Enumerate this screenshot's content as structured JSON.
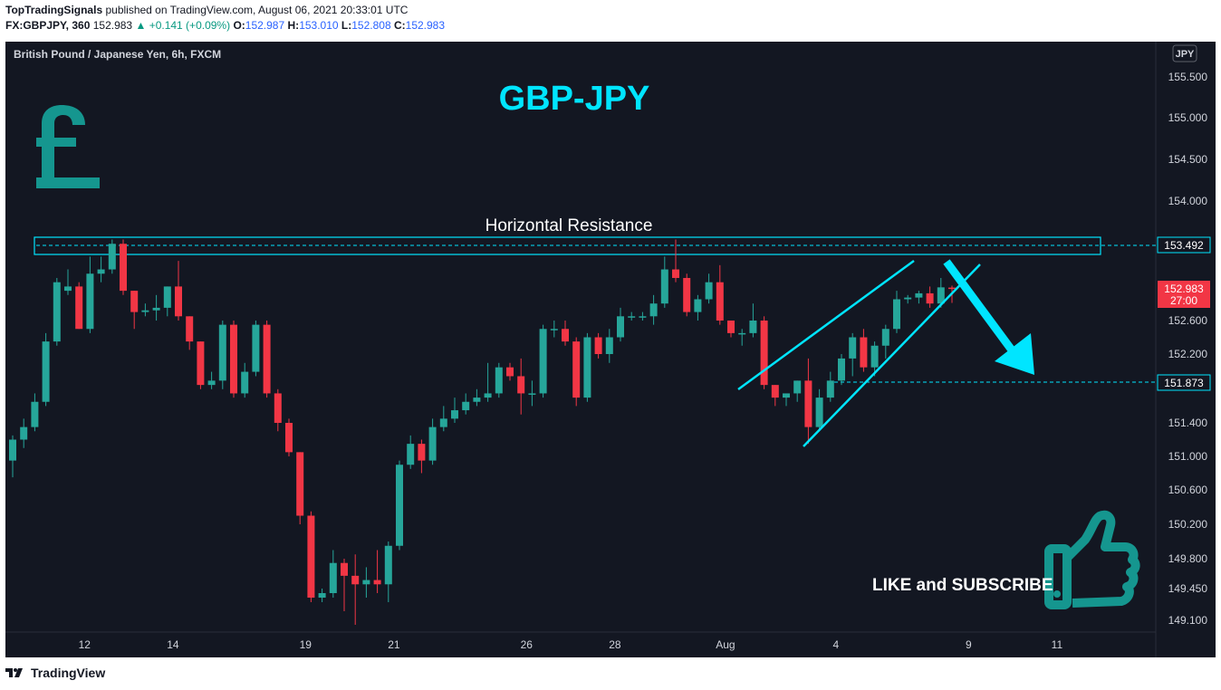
{
  "header": {
    "publisher": "TopTradingSignals",
    "published_text": "published on TradingView.com, August 06, 2021 20:33:01 UTC",
    "symbol": "FX:GBPJPY, 360",
    "last": "152.983",
    "change": "+0.141 (+0.09%)",
    "o_label": "O:",
    "o": "152.987",
    "h_label": "H:",
    "h": "153.010",
    "l_label": "L:",
    "l": "152.808",
    "c_label": "C:",
    "c": "152.983"
  },
  "footer": {
    "logo_text": "TradingView"
  },
  "chart_data": {
    "type": "candlestick",
    "instrument": "British Pound / Japanese Yen, 6h, FXCM",
    "currency_badge": "JPY",
    "title": "GBP-JPY",
    "y_ticks": [
      155.5,
      155.0,
      154.5,
      154.0,
      152.6,
      152.2,
      151.4,
      151.0,
      150.6,
      150.2,
      149.8,
      149.45,
      149.1
    ],
    "y_tick_labels": [
      "155.500",
      "155.000",
      "154.500",
      "154.000",
      "152.600",
      "152.200",
      "151.400",
      "151.000",
      "150.600",
      "150.200",
      "149.800",
      "149.450",
      "149.100"
    ],
    "x_tick_labels": [
      "12",
      "14",
      "19",
      "21",
      "26",
      "28",
      "Aug",
      "4",
      "9",
      "11"
    ],
    "price_labels": {
      "resistance": "153.492",
      "last_price": "152.983",
      "countdown": "27:00",
      "target": "151.873"
    },
    "annotations": {
      "resistance_label": "Horizontal Resistance",
      "cta": "LIKE and SUBSCRIBE"
    },
    "colors": {
      "background": "#131722",
      "up": "#26a69a",
      "down": "#f23645",
      "annotation": "#00e5ff",
      "icon": "#15968f",
      "title": "#00e5ff"
    },
    "candles": [
      {
        "o": 150.95,
        "h": 151.25,
        "l": 150.75,
        "c": 151.2
      },
      {
        "o": 151.2,
        "h": 151.45,
        "l": 151.1,
        "c": 151.35
      },
      {
        "o": 151.35,
        "h": 151.75,
        "l": 151.3,
        "c": 151.65
      },
      {
        "o": 151.65,
        "h": 152.45,
        "l": 151.6,
        "c": 152.35
      },
      {
        "o": 152.35,
        "h": 153.1,
        "l": 152.3,
        "c": 153.05
      },
      {
        "o": 152.95,
        "h": 153.2,
        "l": 152.9,
        "c": 153.0
      },
      {
        "o": 153.0,
        "h": 153.05,
        "l": 152.5,
        "c": 152.5
      },
      {
        "o": 152.5,
        "h": 153.35,
        "l": 152.45,
        "c": 153.15
      },
      {
        "o": 153.15,
        "h": 153.35,
        "l": 153.05,
        "c": 153.2
      },
      {
        "o": 153.2,
        "h": 153.55,
        "l": 153.15,
        "c": 153.5
      },
      {
        "o": 153.5,
        "h": 153.55,
        "l": 152.9,
        "c": 152.95
      },
      {
        "o": 152.95,
        "h": 152.95,
        "l": 152.5,
        "c": 152.7
      },
      {
        "o": 152.7,
        "h": 152.8,
        "l": 152.65,
        "c": 152.72
      },
      {
        "o": 152.72,
        "h": 152.9,
        "l": 152.6,
        "c": 152.75
      },
      {
        "o": 152.75,
        "h": 153.0,
        "l": 152.65,
        "c": 153.0
      },
      {
        "o": 153.0,
        "h": 153.3,
        "l": 152.6,
        "c": 152.65
      },
      {
        "o": 152.65,
        "h": 152.65,
        "l": 152.25,
        "c": 152.35
      },
      {
        "o": 152.35,
        "h": 152.35,
        "l": 151.8,
        "c": 151.85
      },
      {
        "o": 151.85,
        "h": 152.0,
        "l": 151.8,
        "c": 151.9
      },
      {
        "o": 151.9,
        "h": 152.6,
        "l": 151.8,
        "c": 152.55
      },
      {
        "o": 152.55,
        "h": 152.6,
        "l": 151.7,
        "c": 151.75
      },
      {
        "o": 151.75,
        "h": 152.1,
        "l": 151.7,
        "c": 152.0
      },
      {
        "o": 152.0,
        "h": 152.6,
        "l": 151.95,
        "c": 152.55
      },
      {
        "o": 152.55,
        "h": 152.6,
        "l": 151.7,
        "c": 151.75
      },
      {
        "o": 151.75,
        "h": 151.8,
        "l": 151.3,
        "c": 151.4
      },
      {
        "o": 151.4,
        "h": 151.45,
        "l": 151.0,
        "c": 151.05
      },
      {
        "o": 151.05,
        "h": 151.05,
        "l": 150.2,
        "c": 150.3
      },
      {
        "o": 150.3,
        "h": 150.35,
        "l": 149.3,
        "c": 149.35
      },
      {
        "o": 149.35,
        "h": 149.45,
        "l": 149.3,
        "c": 149.4
      },
      {
        "o": 149.4,
        "h": 149.9,
        "l": 149.35,
        "c": 149.75
      },
      {
        "o": 149.75,
        "h": 149.8,
        "l": 149.2,
        "c": 149.6
      },
      {
        "o": 149.6,
        "h": 149.85,
        "l": 149.05,
        "c": 149.5
      },
      {
        "o": 149.5,
        "h": 149.7,
        "l": 149.35,
        "c": 149.55
      },
      {
        "o": 149.55,
        "h": 149.9,
        "l": 149.4,
        "c": 149.5
      },
      {
        "o": 149.5,
        "h": 150.0,
        "l": 149.3,
        "c": 149.95
      },
      {
        "o": 149.95,
        "h": 150.95,
        "l": 149.9,
        "c": 150.9
      },
      {
        "o": 150.9,
        "h": 151.25,
        "l": 150.85,
        "c": 151.15
      },
      {
        "o": 151.15,
        "h": 151.2,
        "l": 150.8,
        "c": 150.95
      },
      {
        "o": 150.95,
        "h": 151.45,
        "l": 150.9,
        "c": 151.35
      },
      {
        "o": 151.35,
        "h": 151.6,
        "l": 151.3,
        "c": 151.45
      },
      {
        "o": 151.45,
        "h": 151.7,
        "l": 151.4,
        "c": 151.55
      },
      {
        "o": 151.55,
        "h": 151.75,
        "l": 151.5,
        "c": 151.65
      },
      {
        "o": 151.65,
        "h": 151.8,
        "l": 151.6,
        "c": 151.7
      },
      {
        "o": 151.7,
        "h": 152.1,
        "l": 151.65,
        "c": 151.75
      },
      {
        "o": 151.75,
        "h": 152.1,
        "l": 151.7,
        "c": 152.05
      },
      {
        "o": 152.05,
        "h": 152.1,
        "l": 151.9,
        "c": 151.95
      },
      {
        "o": 151.95,
        "h": 152.15,
        "l": 151.5,
        "c": 151.75
      },
      {
        "o": 151.75,
        "h": 151.9,
        "l": 151.6,
        "c": 151.75
      },
      {
        "o": 151.75,
        "h": 152.55,
        "l": 151.7,
        "c": 152.5
      },
      {
        "o": 152.5,
        "h": 152.6,
        "l": 152.4,
        "c": 152.5
      },
      {
        "o": 152.5,
        "h": 152.6,
        "l": 152.3,
        "c": 152.35
      },
      {
        "o": 152.35,
        "h": 152.4,
        "l": 151.6,
        "c": 151.7
      },
      {
        "o": 151.7,
        "h": 152.45,
        "l": 151.65,
        "c": 152.4
      },
      {
        "o": 152.4,
        "h": 152.45,
        "l": 152.15,
        "c": 152.2
      },
      {
        "o": 152.2,
        "h": 152.5,
        "l": 152.1,
        "c": 152.4
      },
      {
        "o": 152.4,
        "h": 152.75,
        "l": 152.35,
        "c": 152.65
      },
      {
        "o": 152.65,
        "h": 152.7,
        "l": 152.6,
        "c": 152.65
      },
      {
        "o": 152.65,
        "h": 152.7,
        "l": 152.6,
        "c": 152.65
      },
      {
        "o": 152.65,
        "h": 152.9,
        "l": 152.55,
        "c": 152.8
      },
      {
        "o": 152.8,
        "h": 153.35,
        "l": 152.75,
        "c": 153.2
      },
      {
        "o": 153.2,
        "h": 153.55,
        "l": 153.05,
        "c": 153.1
      },
      {
        "o": 153.1,
        "h": 153.15,
        "l": 152.65,
        "c": 152.7
      },
      {
        "o": 152.7,
        "h": 152.9,
        "l": 152.6,
        "c": 152.85
      },
      {
        "o": 152.85,
        "h": 153.15,
        "l": 152.8,
        "c": 153.05
      },
      {
        "o": 153.05,
        "h": 153.25,
        "l": 152.55,
        "c": 152.6
      },
      {
        "o": 152.6,
        "h": 152.6,
        "l": 152.4,
        "c": 152.45
      },
      {
        "o": 152.45,
        "h": 152.5,
        "l": 152.3,
        "c": 152.45
      },
      {
        "o": 152.45,
        "h": 152.8,
        "l": 152.4,
        "c": 152.6
      },
      {
        "o": 152.6,
        "h": 152.65,
        "l": 151.8,
        "c": 151.85
      },
      {
        "o": 151.85,
        "h": 151.85,
        "l": 151.6,
        "c": 151.7
      },
      {
        "o": 151.7,
        "h": 151.75,
        "l": 151.6,
        "c": 151.75
      },
      {
        "o": 151.75,
        "h": 151.9,
        "l": 151.65,
        "c": 151.9
      },
      {
        "o": 151.9,
        "h": 152.15,
        "l": 151.15,
        "c": 151.35
      },
      {
        "o": 151.35,
        "h": 151.8,
        "l": 151.3,
        "c": 151.7
      },
      {
        "o": 151.7,
        "h": 152.0,
        "l": 151.65,
        "c": 151.9
      },
      {
        "o": 151.9,
        "h": 152.2,
        "l": 151.85,
        "c": 152.15
      },
      {
        "o": 152.15,
        "h": 152.45,
        "l": 151.95,
        "c": 152.4
      },
      {
        "o": 152.4,
        "h": 152.5,
        "l": 152.0,
        "c": 152.05
      },
      {
        "o": 152.05,
        "h": 152.35,
        "l": 151.95,
        "c": 152.3
      },
      {
        "o": 152.3,
        "h": 152.55,
        "l": 152.15,
        "c": 152.5
      },
      {
        "o": 152.5,
        "h": 152.95,
        "l": 152.45,
        "c": 152.85
      },
      {
        "o": 152.85,
        "h": 152.9,
        "l": 152.8,
        "c": 152.87
      },
      {
        "o": 152.87,
        "h": 152.95,
        "l": 152.8,
        "c": 152.92
      },
      {
        "o": 152.92,
        "h": 153.0,
        "l": 152.75,
        "c": 152.8
      },
      {
        "o": 152.8,
        "h": 153.1,
        "l": 152.75,
        "c": 152.99
      },
      {
        "o": 152.987,
        "h": 153.01,
        "l": 152.808,
        "c": 152.983
      }
    ]
  }
}
